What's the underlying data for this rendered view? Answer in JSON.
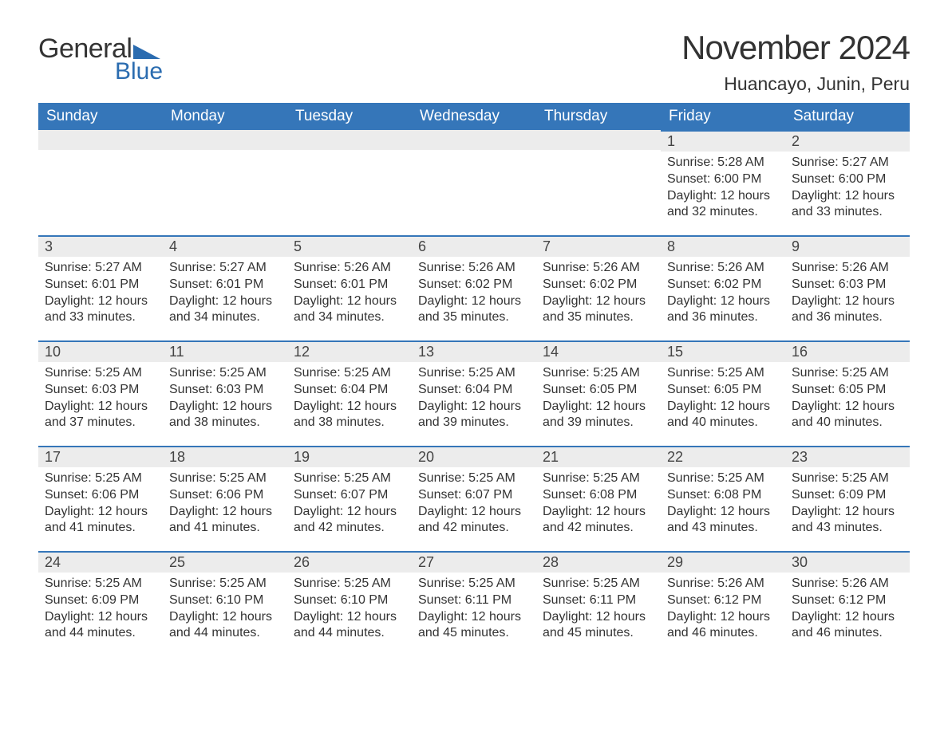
{
  "logo": {
    "word1": "General",
    "word2": "Blue",
    "brand_color": "#2b6cb0"
  },
  "header": {
    "title": "November 2024",
    "location": "Huancayo, Junin, Peru"
  },
  "colors": {
    "header_bg": "#3576b9",
    "header_text": "#ffffff",
    "daynum_bg": "#ececec",
    "daynum_border": "#3576b9",
    "body_text": "#333333",
    "page_bg": "#ffffff"
  },
  "fonts": {
    "title_size_pt": 32,
    "location_size_pt": 17,
    "th_size_pt": 14,
    "daynum_size_pt": 14,
    "body_size_pt": 12
  },
  "weekdays": [
    "Sunday",
    "Monday",
    "Tuesday",
    "Wednesday",
    "Thursday",
    "Friday",
    "Saturday"
  ],
  "labels": {
    "sunrise": "Sunrise: ",
    "sunset": "Sunset: ",
    "daylight": "Daylight: "
  },
  "grid": [
    [
      null,
      null,
      null,
      null,
      null,
      {
        "n": 1,
        "sunrise": "5:28 AM",
        "sunset": "6:00 PM",
        "daylight": "12 hours and 32 minutes."
      },
      {
        "n": 2,
        "sunrise": "5:27 AM",
        "sunset": "6:00 PM",
        "daylight": "12 hours and 33 minutes."
      }
    ],
    [
      {
        "n": 3,
        "sunrise": "5:27 AM",
        "sunset": "6:01 PM",
        "daylight": "12 hours and 33 minutes."
      },
      {
        "n": 4,
        "sunrise": "5:27 AM",
        "sunset": "6:01 PM",
        "daylight": "12 hours and 34 minutes."
      },
      {
        "n": 5,
        "sunrise": "5:26 AM",
        "sunset": "6:01 PM",
        "daylight": "12 hours and 34 minutes."
      },
      {
        "n": 6,
        "sunrise": "5:26 AM",
        "sunset": "6:02 PM",
        "daylight": "12 hours and 35 minutes."
      },
      {
        "n": 7,
        "sunrise": "5:26 AM",
        "sunset": "6:02 PM",
        "daylight": "12 hours and 35 minutes."
      },
      {
        "n": 8,
        "sunrise": "5:26 AM",
        "sunset": "6:02 PM",
        "daylight": "12 hours and 36 minutes."
      },
      {
        "n": 9,
        "sunrise": "5:26 AM",
        "sunset": "6:03 PM",
        "daylight": "12 hours and 36 minutes."
      }
    ],
    [
      {
        "n": 10,
        "sunrise": "5:25 AM",
        "sunset": "6:03 PM",
        "daylight": "12 hours and 37 minutes."
      },
      {
        "n": 11,
        "sunrise": "5:25 AM",
        "sunset": "6:03 PM",
        "daylight": "12 hours and 38 minutes."
      },
      {
        "n": 12,
        "sunrise": "5:25 AM",
        "sunset": "6:04 PM",
        "daylight": "12 hours and 38 minutes."
      },
      {
        "n": 13,
        "sunrise": "5:25 AM",
        "sunset": "6:04 PM",
        "daylight": "12 hours and 39 minutes."
      },
      {
        "n": 14,
        "sunrise": "5:25 AM",
        "sunset": "6:05 PM",
        "daylight": "12 hours and 39 minutes."
      },
      {
        "n": 15,
        "sunrise": "5:25 AM",
        "sunset": "6:05 PM",
        "daylight": "12 hours and 40 minutes."
      },
      {
        "n": 16,
        "sunrise": "5:25 AM",
        "sunset": "6:05 PM",
        "daylight": "12 hours and 40 minutes."
      }
    ],
    [
      {
        "n": 17,
        "sunrise": "5:25 AM",
        "sunset": "6:06 PM",
        "daylight": "12 hours and 41 minutes."
      },
      {
        "n": 18,
        "sunrise": "5:25 AM",
        "sunset": "6:06 PM",
        "daylight": "12 hours and 41 minutes."
      },
      {
        "n": 19,
        "sunrise": "5:25 AM",
        "sunset": "6:07 PM",
        "daylight": "12 hours and 42 minutes."
      },
      {
        "n": 20,
        "sunrise": "5:25 AM",
        "sunset": "6:07 PM",
        "daylight": "12 hours and 42 minutes."
      },
      {
        "n": 21,
        "sunrise": "5:25 AM",
        "sunset": "6:08 PM",
        "daylight": "12 hours and 42 minutes."
      },
      {
        "n": 22,
        "sunrise": "5:25 AM",
        "sunset": "6:08 PM",
        "daylight": "12 hours and 43 minutes."
      },
      {
        "n": 23,
        "sunrise": "5:25 AM",
        "sunset": "6:09 PM",
        "daylight": "12 hours and 43 minutes."
      }
    ],
    [
      {
        "n": 24,
        "sunrise": "5:25 AM",
        "sunset": "6:09 PM",
        "daylight": "12 hours and 44 minutes."
      },
      {
        "n": 25,
        "sunrise": "5:25 AM",
        "sunset": "6:10 PM",
        "daylight": "12 hours and 44 minutes."
      },
      {
        "n": 26,
        "sunrise": "5:25 AM",
        "sunset": "6:10 PM",
        "daylight": "12 hours and 44 minutes."
      },
      {
        "n": 27,
        "sunrise": "5:25 AM",
        "sunset": "6:11 PM",
        "daylight": "12 hours and 45 minutes."
      },
      {
        "n": 28,
        "sunrise": "5:25 AM",
        "sunset": "6:11 PM",
        "daylight": "12 hours and 45 minutes."
      },
      {
        "n": 29,
        "sunrise": "5:26 AM",
        "sunset": "6:12 PM",
        "daylight": "12 hours and 46 minutes."
      },
      {
        "n": 30,
        "sunrise": "5:26 AM",
        "sunset": "6:12 PM",
        "daylight": "12 hours and 46 minutes."
      }
    ]
  ]
}
